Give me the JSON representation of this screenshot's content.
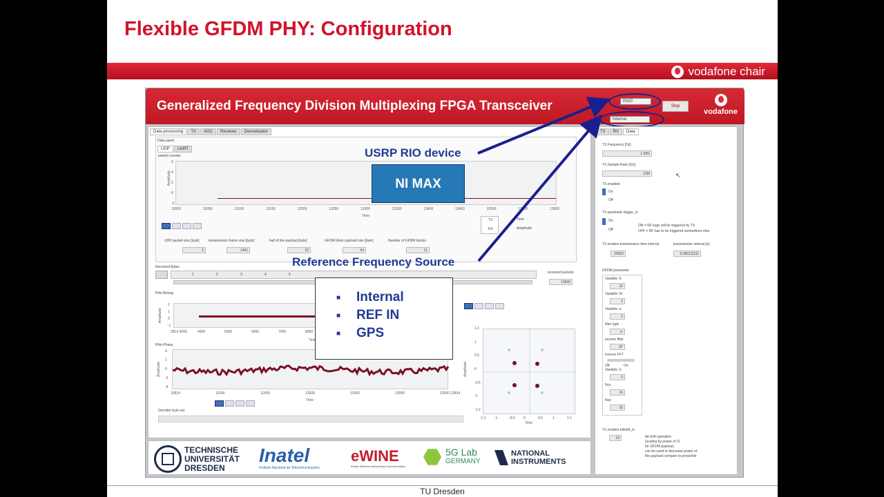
{
  "slide": {
    "title": "Flexible GFDM PHY: Configuration",
    "brand": "vodafone chair",
    "footer": "TU Dresden"
  },
  "lv": {
    "title": "Generalized Frequency Division Multiplexing FPGA Transceiver",
    "device_value": "RIO0",
    "ref_value": "Internal",
    "stop_label": "Stop",
    "vf_label": "vodafone",
    "tabs": [
      "Data processing",
      "TX",
      "AGC",
      "Receiver",
      "Demodulator"
    ],
    "data_panel_label": "Data panel",
    "sub_tabs": [
      "UDP",
      "UART"
    ],
    "packet_counter_label": "packet counter",
    "plot1": {
      "ylabel": "Amplitude",
      "xlabel": "Time",
      "yticks": [
        "6",
        "4",
        "2",
        "0",
        "-2"
      ],
      "xticks": [
        "13000",
        "13050",
        "13100",
        "13150",
        "13200",
        "13250",
        "13300",
        "13350",
        "13400",
        "13450",
        "13500",
        "13550",
        "13600"
      ]
    },
    "legend": [
      "TX",
      "RX"
    ],
    "legend2": [
      "Time",
      "Amplitude"
    ],
    "fields": [
      {
        "label": "UDP packet size [byte]",
        "value": "5"
      },
      {
        "label": "transmission frame size [byte]",
        "value": "1491"
      },
      {
        "label": "half of the payload [byte]",
        "value": "32"
      },
      {
        "label": "GFDM block payload size [byte]",
        "value": "64"
      },
      {
        "label": "Number of GFDM blocks",
        "value": "21"
      }
    ],
    "received_bytes_label": "Received Bytes",
    "byte_cells": [
      "1",
      "2",
      "3",
      "4",
      "5"
    ],
    "received_packets_label": "received packets",
    "received_packets_value": "13690",
    "pilot_betrag_label": "Pilot-Betrag",
    "plot2": {
      "ylabel": "Amplitude",
      "xlabel": "Time",
      "yticks": [
        "2",
        "1",
        "0",
        "-1"
      ],
      "xticks": [
        "2814 3000",
        "4000",
        "5000",
        "6000",
        "7000",
        "8000"
      ]
    },
    "pilot_phase_label": "Pilot-Phase",
    "plot3": {
      "ylabel": "Amplitude",
      "xlabel": "Time",
      "yticks": [
        "4",
        "2",
        "0",
        "-2",
        "-4"
      ],
      "xticks": [
        "10814",
        "11000",
        "11500",
        "12000",
        "12500",
        "13000",
        "13500 13814"
      ]
    },
    "constellation": {
      "xlabel": "Time",
      "ylabel": "Amplitude",
      "yticks": [
        "1.2",
        "1",
        "0.5",
        "0",
        "-0.5",
        "-1",
        "-1.2"
      ],
      "xticks": [
        "-1.1",
        "-1",
        "-0.5",
        "0",
        "0.5",
        "1",
        "1.1"
      ]
    },
    "decoder_label": "Decoder byte out",
    "right": {
      "tabs": [
        "TX",
        "RX",
        "Data"
      ],
      "tx_freq_label": "TX.Frequency [Hz]",
      "tx_freq_value": "1.99G",
      "tx_rate_label": "TX.Sample Rate [S/s]",
      "tx_rate_value": "10M",
      "tx_enabled_label": "TX.enabled",
      "on": "On",
      "off": "Off",
      "trigger_label": "TX.automatic trigger_in",
      "trigger_note1": "ON = RF logic will be triggered by TX",
      "trigger_note2": "OFF = RF has to be triggered somewhere else",
      "interval_label": "TX.modem.transmission time interval",
      "interval_value": "20000",
      "interval_s_label": "transmission interval [s]",
      "interval_s_value": "0.000111111",
      "gfdm_label": "GFDM parameter",
      "params": [
        {
          "label": "Variable: K",
          "value": "32"
        },
        {
          "label": "Variable: M",
          "value": "3"
        },
        {
          "label": "Variable: a",
          "value": "2"
        },
        {
          "label": "filter type",
          "value": "rc"
        },
        {
          "label": "receive filter",
          "value": "ZF"
        },
        {
          "label": "inverse FFT",
          "value": ""
        },
        {
          "label": "Variable: b",
          "value": "0"
        },
        {
          "label": "Ncs",
          "value": "16"
        },
        {
          "label": "Ncp",
          "value": "32"
        }
      ],
      "ifft_off": "Off",
      "ifft_on": "On",
      "bitshift_label": "TX.modem.bitshift_in",
      "bitshift_value": "15",
      "bitshift_note": [
        "bit shift operation",
        "(scaling by power of 2)",
        "for GFDM payload,",
        "can be used to decrease power of",
        "the payload compare to preamble"
      ]
    },
    "logos": {
      "tu1": "TECHNISCHE",
      "tu2": "UNIVERSITÄT",
      "tu3": "DRESDEN",
      "inatel": "Inatel",
      "inatel_sub": "Instituto Nacional de Telecomunicações",
      "ewine": "eWINE",
      "ewine_sub": "Elastic Wireless Networking Experimentation",
      "lab5g": "5G Lab",
      "lab5g_sub": "GERMANY",
      "ni1": "NATIONAL",
      "ni2": "INSTRUMENTS"
    }
  },
  "callouts": {
    "usrp": "USRP RIO device",
    "nimax": "NI MAX",
    "ref": "Reference Frequency Source",
    "options": [
      "Internal",
      "REF IN",
      "GPS"
    ]
  },
  "colors": {
    "brand_red": "#d2122a",
    "callout_blue": "#1f3a93",
    "nimax_blue": "#2778b6",
    "trace_red": "#7a1022"
  }
}
